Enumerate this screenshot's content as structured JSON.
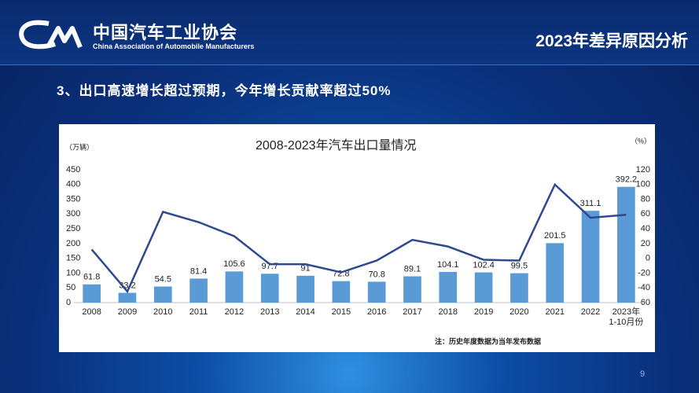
{
  "header": {
    "org_name": "中国汽车工业协会",
    "org_name_en": "China Association of Automobile Manufacturers",
    "title": "2023年差异原因分析"
  },
  "subtitle": "3、出口高速增长超过预期，今年增长贡献率超过50%",
  "page_number": "9",
  "chart_data": {
    "type": "combo",
    "title": "2008-2023年汽车出口量情况",
    "ylabel": "（万辆）",
    "y2label": "（%）",
    "note": "注：历史年度数据为当年发布数据",
    "categories": [
      "2008",
      "2009",
      "2010",
      "2011",
      "2012",
      "2013",
      "2014",
      "2015",
      "2016",
      "2017",
      "2018",
      "2019",
      "2020",
      "2021",
      "2022",
      "2023年\n1-10月份"
    ],
    "series": [
      {
        "type": "bar",
        "color": "#5b9bd5",
        "values": [
          61.8,
          33.2,
          54.5,
          81.4,
          105.6,
          97.7,
          91,
          72.8,
          70.8,
          89.1,
          104.1,
          102.4,
          99.5,
          201.5,
          311.1,
          392.2
        ]
      },
      {
        "type": "line",
        "axis": "y2",
        "color": "#2e4a8e",
        "values": [
          12,
          -45,
          63,
          49,
          30,
          -8,
          -8,
          -19,
          -3,
          25,
          16,
          -2,
          -3,
          100,
          55,
          59
        ]
      }
    ],
    "ylim": [
      0,
      450
    ],
    "yticks": [
      0,
      50,
      100,
      150,
      200,
      250,
      300,
      350,
      400,
      450
    ],
    "y2lim": [
      -60,
      120
    ],
    "y2ticks": [
      -60,
      -40,
      -20,
      0,
      20,
      40,
      60,
      80,
      100,
      120
    ]
  }
}
